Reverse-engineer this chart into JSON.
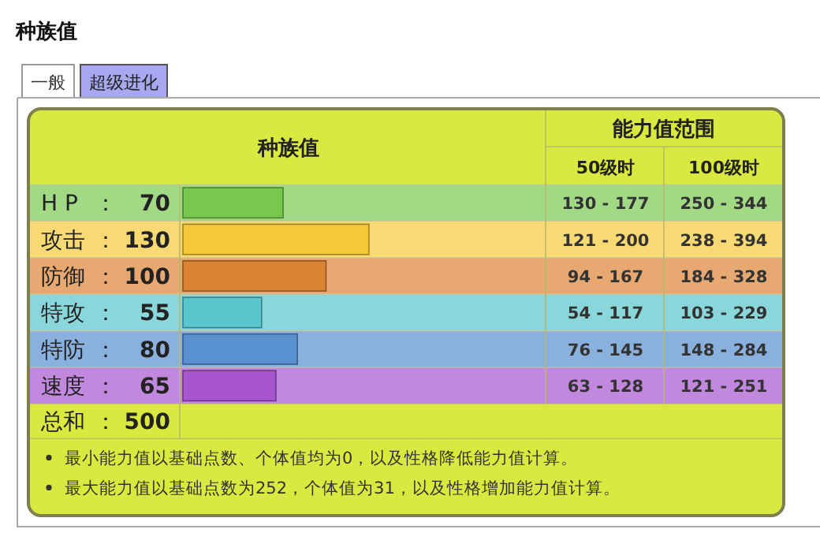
{
  "chart_data": {
    "type": "bar",
    "orientation": "horizontal",
    "title": "种族值",
    "categories": [
      "H P",
      "攻击",
      "防御",
      "特攻",
      "特防",
      "速度"
    ],
    "values": [
      70,
      130,
      100,
      55,
      80,
      65
    ],
    "colors": [
      "#78c850",
      "#f5c838",
      "#dc8434",
      "#58c6cc",
      "#5890d0",
      "#a855d0"
    ],
    "data_labels": true,
    "annotations": [
      "一般",
      "超级进化",
      "种族值",
      "能力值范围",
      "50级时",
      "100级时",
      "130 - 177",
      "250 - 344",
      "121 - 200",
      "238 - 394",
      "94 - 167",
      "184 - 328",
      "54 - 117",
      "103 - 229",
      "76 - 145",
      "148 - 284",
      "63 - 128",
      "121 - 251",
      "总和",
      "500",
      "最小能力值以基础点数、个体值均为0，以及性格降低能力值计算。",
      "最大能力值以基础点数为252，个体值为31，以及性格增加能力值计算。",
      "："
    ]
  }
}
